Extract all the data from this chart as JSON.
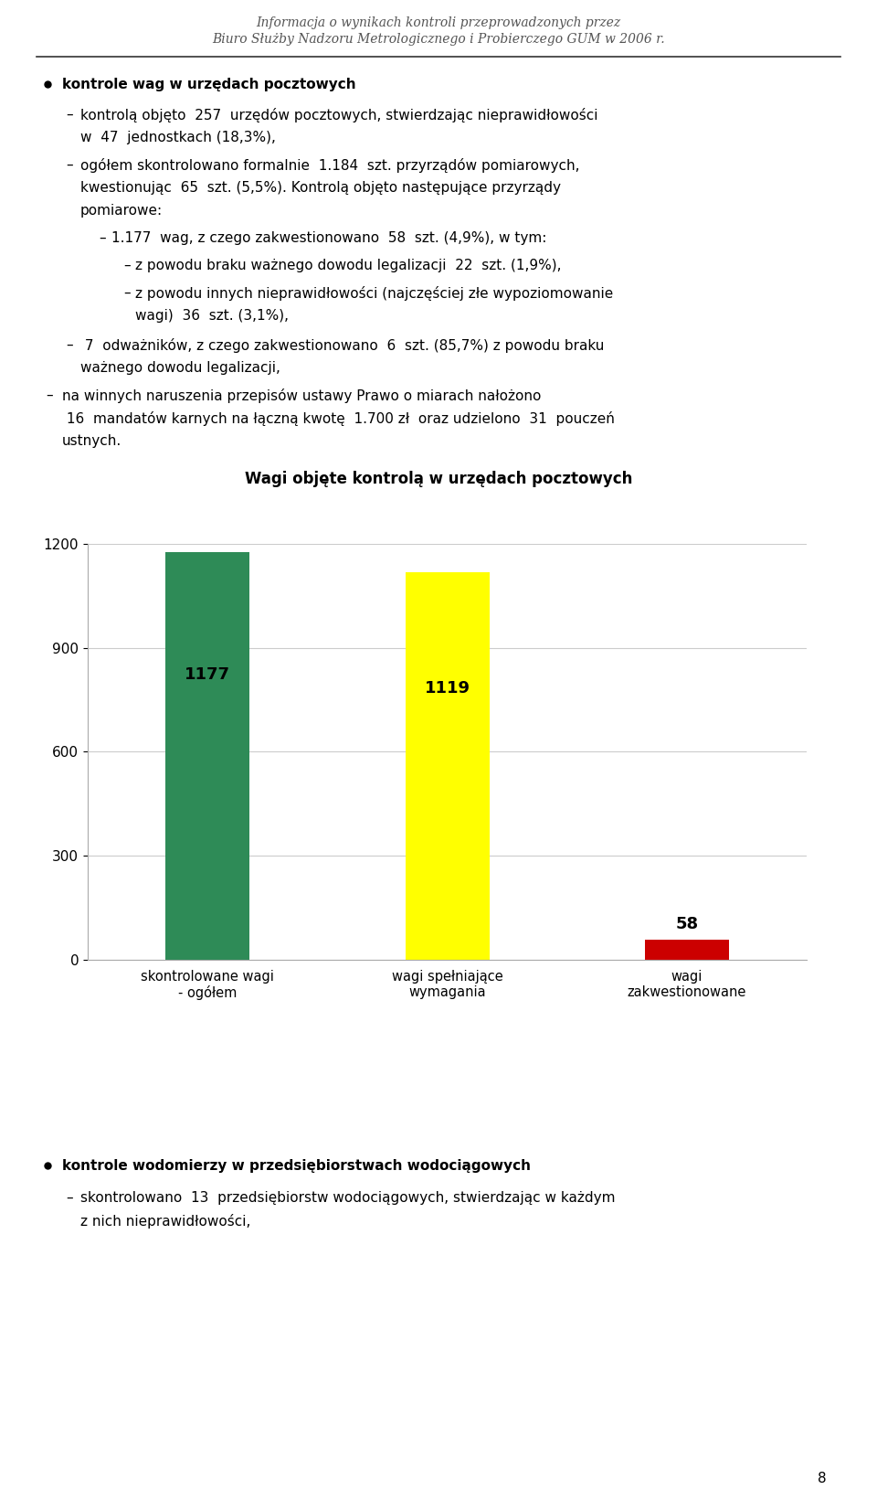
{
  "header_line1": "Informacja o wynikach kontroli przeprowadzonych przez",
  "header_line2": "Biuro Służby Nadzoru Metrologicznego i Probierczego GUM w 2006 r.",
  "bullet1_bold": "kontrole wag w urzędach pocztowych",
  "chart_title": "Wagi objęte kontrolą w urzędach pocztowych",
  "bar_categories": [
    "skontrolowane wagi\n- ogółem",
    "wagi spełniające\nwymagania",
    "wagi\nzakwestionowane"
  ],
  "bar_values": [
    1177,
    1119,
    58
  ],
  "bar_colors": [
    "#2e8b57",
    "#ffff00",
    "#cc0000"
  ],
  "bar_labels": [
    "1177",
    "1119",
    "58"
  ],
  "ylim": [
    0,
    1200
  ],
  "yticks": [
    0,
    300,
    600,
    900,
    1200
  ],
  "bullet2_bold": "kontrole wodomierzy w przedsiębiorstwach wodociągowych",
  "bg_color": "#ffffff",
  "text_color": "#000000",
  "header_color": "#888888"
}
